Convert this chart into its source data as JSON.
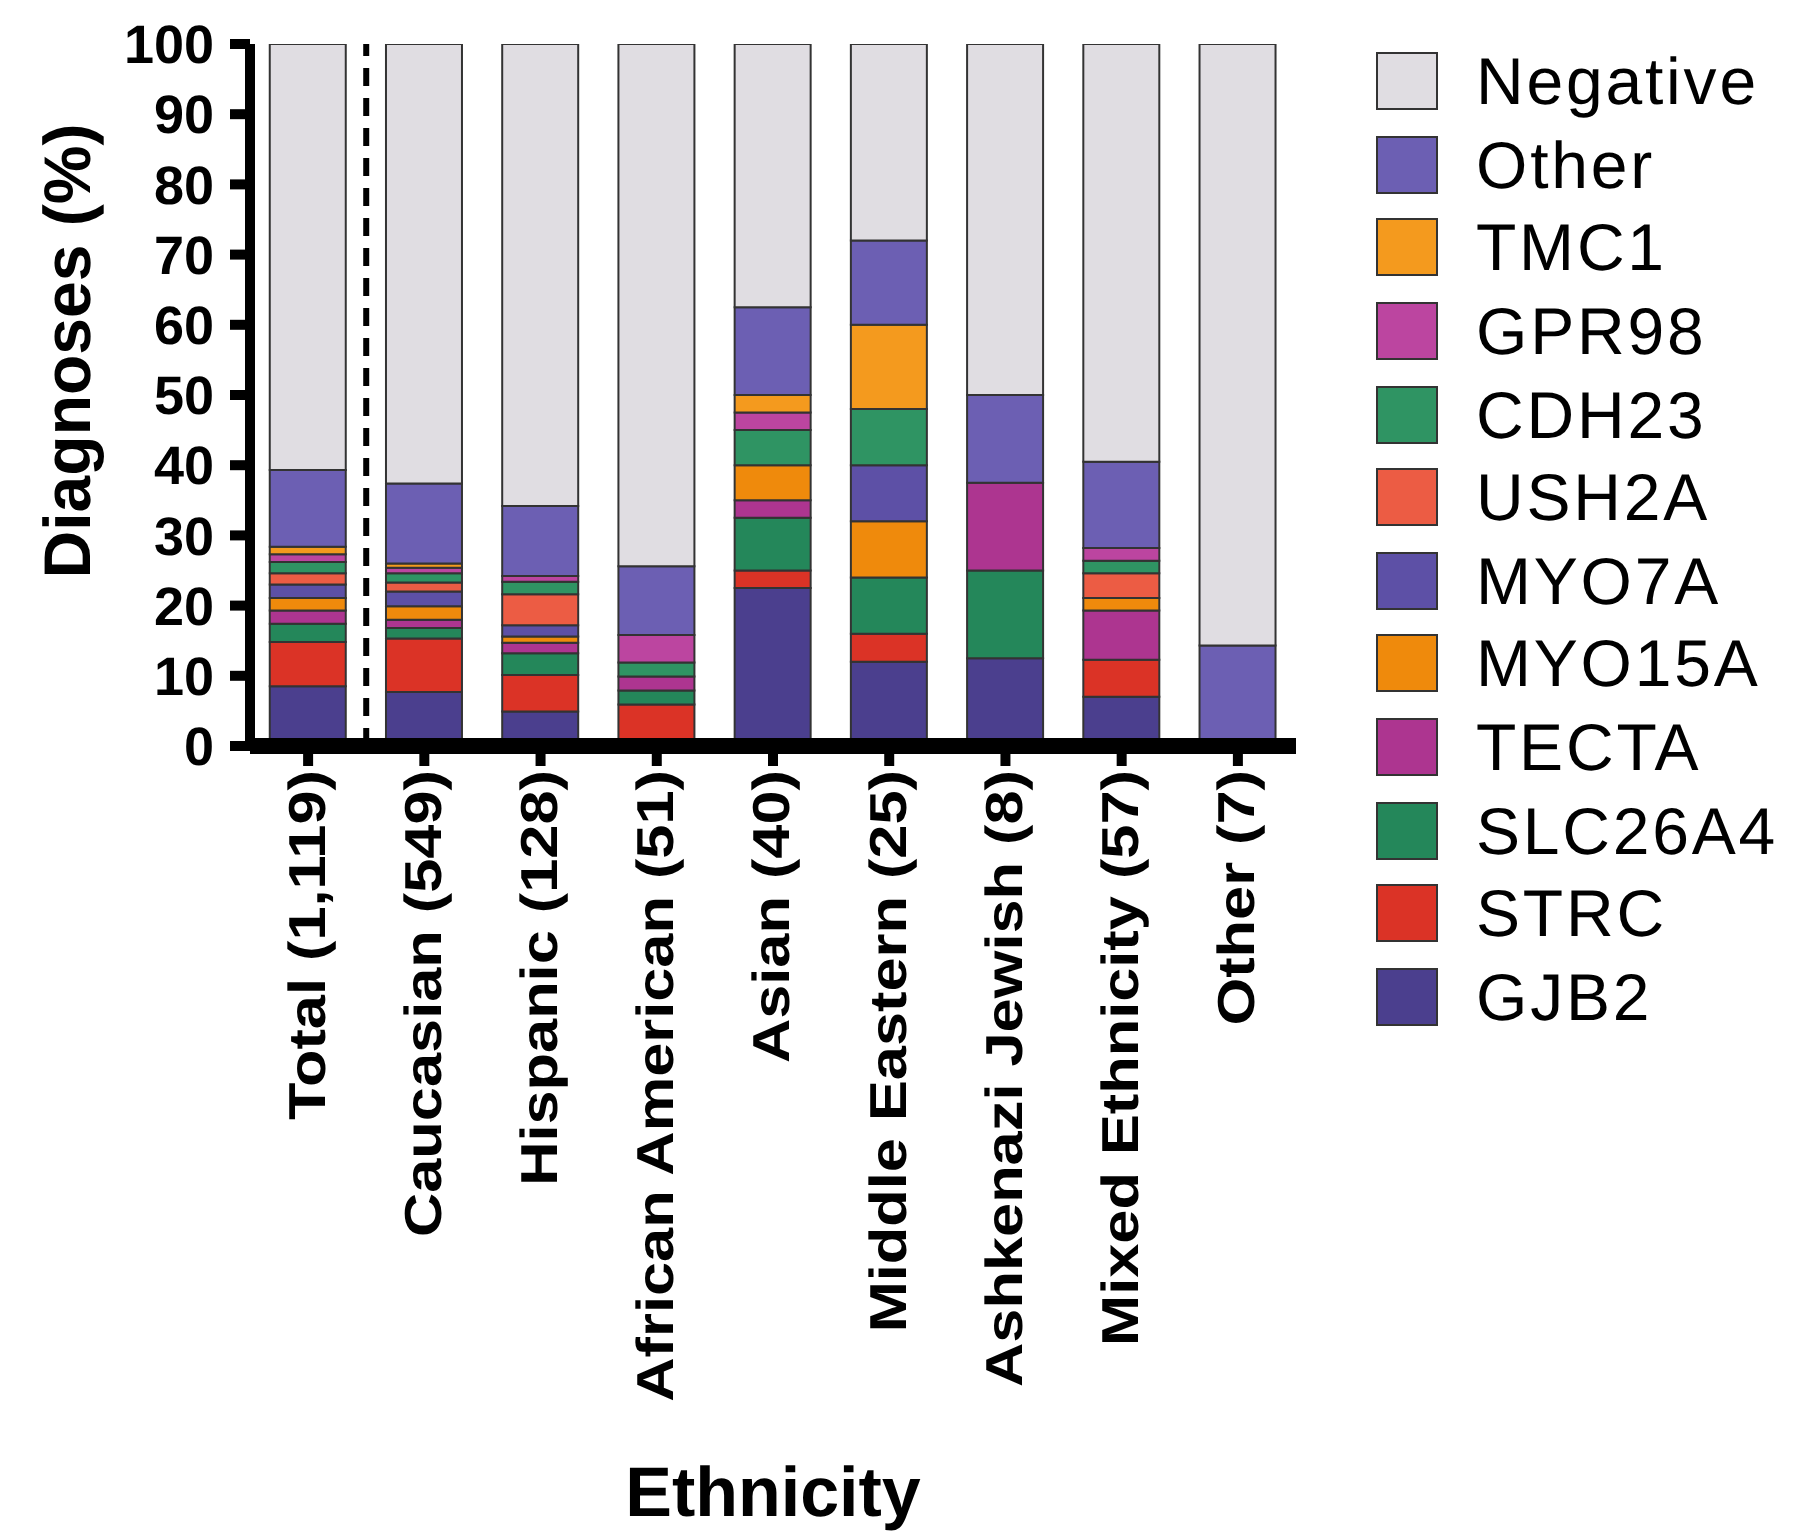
{
  "chart_data": {
    "type": "bar",
    "stacked": true,
    "xlabel": "Ethnicity",
    "ylabel": "Diagnoses (%)",
    "categories": [
      "Total (1,119)",
      "Caucasian (549)",
      "Hispanic (128)",
      "African American (51)",
      "Asian (40)",
      "Middle Eastern (25)",
      "Ashkenazi Jewish (8)",
      "Mixed Ethnicity (57)",
      "Other (7)"
    ],
    "series": [
      {
        "name": "GJB2",
        "color": "#4b3f8e",
        "values": [
          8.5,
          7.7,
          4.9,
          0,
          22.5,
          12,
          12.5,
          7.0,
          0
        ]
      },
      {
        "name": "STRC",
        "color": "#db3326",
        "values": [
          6.3,
          7.6,
          5.2,
          5.9,
          2.5,
          4,
          0,
          5.3,
          0
        ]
      },
      {
        "name": "SLC26A4",
        "color": "#24875a",
        "values": [
          2.6,
          1.5,
          3.1,
          2.0,
          7.5,
          8,
          12.5,
          0,
          0
        ]
      },
      {
        "name": "TECTA",
        "color": "#ad3590",
        "values": [
          1.9,
          1.2,
          1.5,
          2.0,
          2.5,
          0,
          12.5,
          7.0,
          0
        ]
      },
      {
        "name": "MYO15A",
        "color": "#ef8a0c",
        "values": [
          1.8,
          1.9,
          0.9,
          0,
          5.0,
          8,
          0,
          1.8,
          0
        ]
      },
      {
        "name": "MYO7A",
        "color": "#5d50a6",
        "values": [
          1.9,
          2.1,
          1.6,
          0,
          0,
          8,
          0,
          0,
          0
        ]
      },
      {
        "name": "USH2A",
        "color": "#ec5c44",
        "values": [
          1.6,
          1.3,
          4.4,
          0,
          0,
          0,
          0,
          3.5,
          0
        ]
      },
      {
        "name": "CDH23",
        "color": "#2f9463",
        "values": [
          1.6,
          1.3,
          1.8,
          2.0,
          5.0,
          8,
          0,
          1.8,
          0
        ]
      },
      {
        "name": "GPR98",
        "color": "#bc45a0",
        "values": [
          1.1,
          0.8,
          0.8,
          3.9,
          2.5,
          0,
          0,
          1.8,
          0
        ]
      },
      {
        "name": "TMC1",
        "color": "#f49a1e",
        "values": [
          1.1,
          0.6,
          0,
          0,
          2.5,
          12,
          0,
          0,
          0
        ]
      },
      {
        "name": "Other",
        "color": "#6c5fb3",
        "values": [
          10.9,
          11.4,
          10.0,
          9.8,
          12.5,
          12,
          12.5,
          12.3,
          14.3
        ]
      },
      {
        "name": "Negative",
        "color": "#e0dde2",
        "values": [
          60.7,
          62.6,
          65.8,
          74.4,
          37.5,
          28,
          50,
          59.5,
          85.7
        ]
      }
    ],
    "ylim": [
      0,
      100
    ],
    "yticks": [
      0,
      10,
      20,
      30,
      40,
      50,
      60,
      70,
      80,
      90,
      100
    ],
    "grid": false,
    "legend": "right"
  }
}
